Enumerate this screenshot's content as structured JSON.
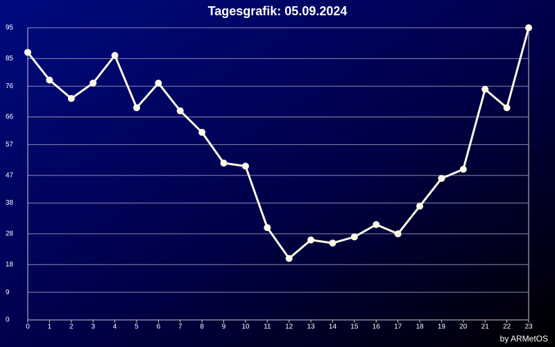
{
  "chart_data": {
    "type": "line",
    "title": "Tagesgrafik: 05.09.2024",
    "credit": "by ARMetOS",
    "x": [
      0,
      1,
      2,
      3,
      4,
      5,
      6,
      7,
      8,
      9,
      10,
      11,
      12,
      13,
      14,
      15,
      16,
      17,
      18,
      19,
      20,
      21,
      22,
      23
    ],
    "series": [
      {
        "color": "#fffbe8",
        "values": [
          87,
          78,
          72,
          77,
          86,
          69,
          77,
          68,
          61,
          51,
          50,
          30,
          20,
          26,
          25,
          27,
          31,
          28,
          37,
          46,
          49,
          75,
          69,
          95
        ]
      }
    ],
    "xlim": [
      0,
      23
    ],
    "xticks": [
      0,
      1,
      2,
      3,
      4,
      5,
      6,
      7,
      8,
      9,
      10,
      11,
      12,
      13,
      14,
      15,
      16,
      17,
      18,
      19,
      20,
      21,
      22,
      23
    ],
    "ylim": [
      0,
      95
    ],
    "yticks": [
      0,
      9,
      18,
      28,
      38,
      47,
      57,
      66,
      76,
      85,
      95
    ],
    "grid": true
  }
}
